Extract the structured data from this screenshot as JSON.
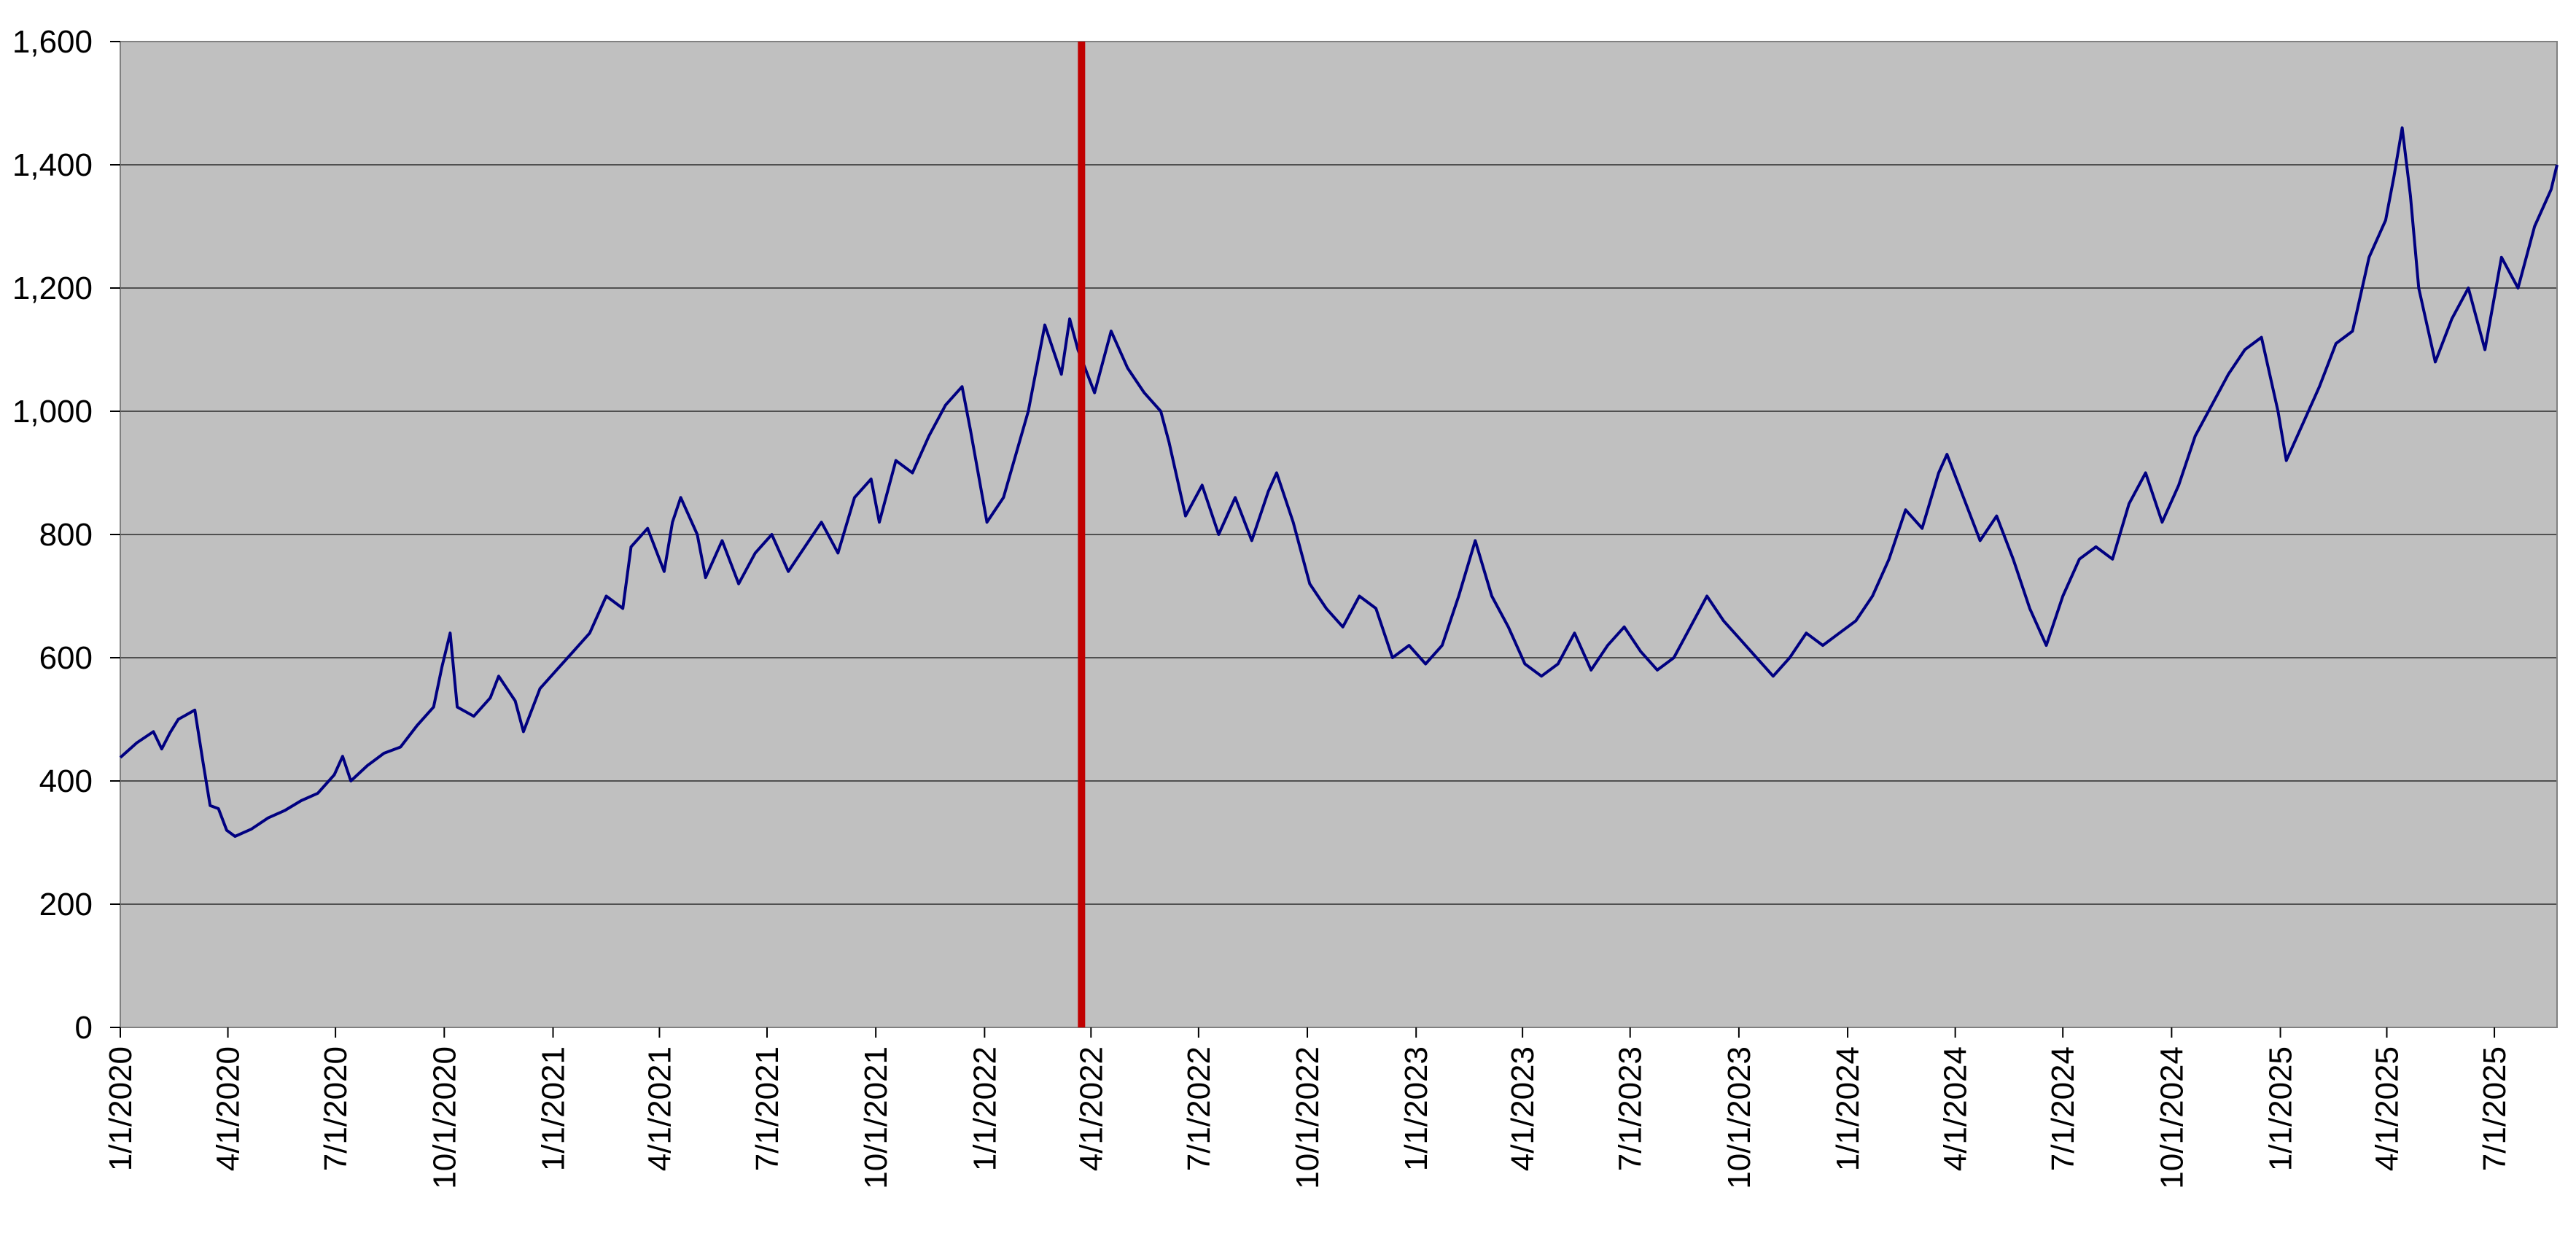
{
  "chart_data": {
    "type": "line",
    "title": "",
    "xlabel": "",
    "ylabel": "",
    "ylim": [
      0,
      1600
    ],
    "yticks": [
      0,
      200,
      400,
      600,
      800,
      1000,
      1200,
      1400,
      1600
    ],
    "ytick_labels": [
      "0",
      "200",
      "400",
      "600",
      "800",
      "1,000",
      "1,200",
      "1,400",
      "1,600"
    ],
    "xlim": [
      "2020-01-01",
      "2025-08-23"
    ],
    "xticks": [
      "2020-01-01",
      "2020-04-01",
      "2020-07-01",
      "2020-10-01",
      "2021-01-01",
      "2021-04-01",
      "2021-07-01",
      "2021-10-01",
      "2022-01-01",
      "2022-04-01",
      "2022-07-01",
      "2022-10-01",
      "2023-01-01",
      "2023-04-01",
      "2023-07-01",
      "2023-10-01",
      "2024-01-01",
      "2024-04-01",
      "2024-07-01",
      "2024-10-01",
      "2025-01-01",
      "2025-04-01",
      "2025-07-01"
    ],
    "xtick_labels": [
      "1/1/2020",
      "4/1/2020",
      "7/1/2020",
      "10/1/2020",
      "1/1/2021",
      "4/1/2021",
      "7/1/2021",
      "10/1/2021",
      "1/1/2022",
      "4/1/2022",
      "7/1/2022",
      "10/1/2022",
      "1/1/2023",
      "4/1/2023",
      "7/1/2023",
      "10/1/2023",
      "1/1/2024",
      "4/1/2024",
      "7/1/2024",
      "10/1/2024",
      "1/1/2025",
      "4/1/2025",
      "7/1/2025"
    ],
    "grid": true,
    "plot_background": "#C0C0C0",
    "line_color": "#000080",
    "marker_line": {
      "date": "2022-03-24",
      "color": "#C00000"
    },
    "series": [
      {
        "points": [
          [
            "2020-01-01",
            438
          ],
          [
            "2020-01-15",
            462
          ],
          [
            "2020-01-29",
            480
          ],
          [
            "2020-02-05",
            452
          ],
          [
            "2020-02-12",
            478
          ],
          [
            "2020-02-19",
            500
          ],
          [
            "2020-03-04",
            515
          ],
          [
            "2020-03-11",
            430
          ],
          [
            "2020-03-17",
            360
          ],
          [
            "2020-03-24",
            355
          ],
          [
            "2020-03-31",
            320
          ],
          [
            "2020-04-07",
            310
          ],
          [
            "2020-04-21",
            322
          ],
          [
            "2020-05-05",
            340
          ],
          [
            "2020-05-19",
            352
          ],
          [
            "2020-06-02",
            368
          ],
          [
            "2020-06-16",
            380
          ],
          [
            "2020-06-30",
            410
          ],
          [
            "2020-07-07",
            440
          ],
          [
            "2020-07-14",
            400
          ],
          [
            "2020-07-28",
            425
          ],
          [
            "2020-08-11",
            445
          ],
          [
            "2020-08-25",
            455
          ],
          [
            "2020-09-08",
            490
          ],
          [
            "2020-09-22",
            520
          ],
          [
            "2020-09-29",
            585
          ],
          [
            "2020-10-06",
            640
          ],
          [
            "2020-10-12",
            520
          ],
          [
            "2020-10-26",
            505
          ],
          [
            "2020-11-09",
            535
          ],
          [
            "2020-11-16",
            570
          ],
          [
            "2020-11-30",
            530
          ],
          [
            "2020-12-07",
            480
          ],
          [
            "2020-12-21",
            550
          ],
          [
            "2021-01-04",
            580
          ],
          [
            "2021-01-18",
            610
          ],
          [
            "2021-02-01",
            640
          ],
          [
            "2021-02-15",
            700
          ],
          [
            "2021-03-01",
            680
          ],
          [
            "2021-03-08",
            780
          ],
          [
            "2021-03-22",
            810
          ],
          [
            "2021-04-05",
            740
          ],
          [
            "2021-04-12",
            820
          ],
          [
            "2021-04-19",
            860
          ],
          [
            "2021-05-03",
            800
          ],
          [
            "2021-05-10",
            730
          ],
          [
            "2021-05-24",
            790
          ],
          [
            "2021-06-07",
            720
          ],
          [
            "2021-06-21",
            770
          ],
          [
            "2021-07-05",
            800
          ],
          [
            "2021-07-19",
            740
          ],
          [
            "2021-08-02",
            780
          ],
          [
            "2021-08-16",
            820
          ],
          [
            "2021-08-30",
            770
          ],
          [
            "2021-09-13",
            860
          ],
          [
            "2021-09-27",
            890
          ],
          [
            "2021-10-04",
            820
          ],
          [
            "2021-10-18",
            920
          ],
          [
            "2021-11-01",
            900
          ],
          [
            "2021-11-15",
            960
          ],
          [
            "2021-11-29",
            1010
          ],
          [
            "2021-12-13",
            1040
          ],
          [
            "2021-12-20",
            970
          ],
          [
            "2022-01-03",
            820
          ],
          [
            "2022-01-17",
            860
          ],
          [
            "2022-02-07",
            1000
          ],
          [
            "2022-02-21",
            1140
          ],
          [
            "2022-03-07",
            1060
          ],
          [
            "2022-03-14",
            1150
          ],
          [
            "2022-03-21",
            1100
          ],
          [
            "2022-04-04",
            1030
          ],
          [
            "2022-04-18",
            1130
          ],
          [
            "2022-05-02",
            1070
          ],
          [
            "2022-05-16",
            1030
          ],
          [
            "2022-05-30",
            1000
          ],
          [
            "2022-06-06",
            950
          ],
          [
            "2022-06-20",
            830
          ],
          [
            "2022-07-04",
            880
          ],
          [
            "2022-07-18",
            800
          ],
          [
            "2022-08-01",
            860
          ],
          [
            "2022-08-15",
            790
          ],
          [
            "2022-08-29",
            870
          ],
          [
            "2022-09-05",
            900
          ],
          [
            "2022-09-19",
            820
          ],
          [
            "2022-10-03",
            720
          ],
          [
            "2022-10-17",
            680
          ],
          [
            "2022-10-31",
            650
          ],
          [
            "2022-11-14",
            700
          ],
          [
            "2022-11-28",
            680
          ],
          [
            "2022-12-12",
            600
          ],
          [
            "2022-12-26",
            620
          ],
          [
            "2023-01-09",
            590
          ],
          [
            "2023-01-23",
            620
          ],
          [
            "2023-02-06",
            700
          ],
          [
            "2023-02-20",
            790
          ],
          [
            "2023-03-06",
            700
          ],
          [
            "2023-03-20",
            650
          ],
          [
            "2023-04-03",
            590
          ],
          [
            "2023-04-17",
            570
          ],
          [
            "2023-05-01",
            590
          ],
          [
            "2023-05-15",
            640
          ],
          [
            "2023-05-29",
            580
          ],
          [
            "2023-06-12",
            620
          ],
          [
            "2023-06-26",
            650
          ],
          [
            "2023-07-10",
            610
          ],
          [
            "2023-07-24",
            580
          ],
          [
            "2023-08-07",
            600
          ],
          [
            "2023-08-21",
            650
          ],
          [
            "2023-09-04",
            700
          ],
          [
            "2023-09-18",
            660
          ],
          [
            "2023-10-02",
            630
          ],
          [
            "2023-10-16",
            600
          ],
          [
            "2023-10-30",
            570
          ],
          [
            "2023-11-13",
            600
          ],
          [
            "2023-11-27",
            640
          ],
          [
            "2023-12-11",
            620
          ],
          [
            "2023-12-25",
            640
          ],
          [
            "2024-01-08",
            660
          ],
          [
            "2024-01-22",
            700
          ],
          [
            "2024-02-05",
            760
          ],
          [
            "2024-02-19",
            840
          ],
          [
            "2024-03-04",
            810
          ],
          [
            "2024-03-18",
            900
          ],
          [
            "2024-03-25",
            930
          ],
          [
            "2024-04-08",
            860
          ],
          [
            "2024-04-22",
            790
          ],
          [
            "2024-05-06",
            830
          ],
          [
            "2024-05-20",
            760
          ],
          [
            "2024-06-03",
            680
          ],
          [
            "2024-06-17",
            620
          ],
          [
            "2024-07-01",
            700
          ],
          [
            "2024-07-15",
            760
          ],
          [
            "2024-07-29",
            780
          ],
          [
            "2024-08-12",
            760
          ],
          [
            "2024-08-26",
            850
          ],
          [
            "2024-09-09",
            900
          ],
          [
            "2024-09-23",
            820
          ],
          [
            "2024-10-07",
            880
          ],
          [
            "2024-10-21",
            960
          ],
          [
            "2024-11-04",
            1010
          ],
          [
            "2024-11-18",
            1060
          ],
          [
            "2024-12-02",
            1100
          ],
          [
            "2024-12-16",
            1120
          ],
          [
            "2024-12-30",
            1000
          ],
          [
            "2025-01-06",
            920
          ],
          [
            "2025-01-20",
            980
          ],
          [
            "2025-02-03",
            1040
          ],
          [
            "2025-02-17",
            1110
          ],
          [
            "2025-03-03",
            1130
          ],
          [
            "2025-03-17",
            1250
          ],
          [
            "2025-03-31",
            1310
          ],
          [
            "2025-04-07",
            1380
          ],
          [
            "2025-04-14",
            1460
          ],
          [
            "2025-04-21",
            1350
          ],
          [
            "2025-04-28",
            1200
          ],
          [
            "2025-05-12",
            1080
          ],
          [
            "2025-05-26",
            1150
          ],
          [
            "2025-06-09",
            1200
          ],
          [
            "2025-06-23",
            1100
          ],
          [
            "2025-07-07",
            1250
          ],
          [
            "2025-07-21",
            1200
          ],
          [
            "2025-08-04",
            1300
          ],
          [
            "2025-08-18",
            1360
          ],
          [
            "2025-08-23",
            1400
          ]
        ]
      }
    ]
  }
}
